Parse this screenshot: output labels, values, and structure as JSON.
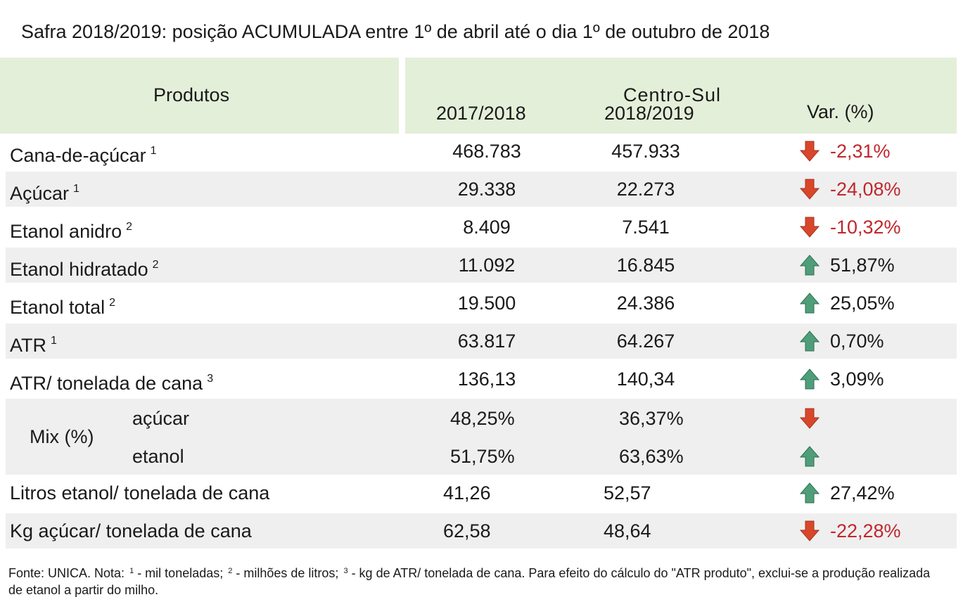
{
  "title": "Safra 2018/2019: posição ACUMULADA entre 1º de abril até o dia 1º de outubro de 2018",
  "header": {
    "produtos": "Produtos",
    "region": "Centro-Sul",
    "col1": "2017/2018",
    "col2": "2018/2019",
    "var": "Var. (%)"
  },
  "rows": [
    {
      "label": "Cana-de-açúcar",
      "note": "1",
      "v1": "468.783",
      "v2": "457.933",
      "trend": "down",
      "var": "-2,31%"
    },
    {
      "label": "Açúcar",
      "note": "1",
      "v1": "29.338",
      "v2": "22.273",
      "trend": "down",
      "var": "-24,08%"
    },
    {
      "label": "Etanol anidro",
      "note": "2",
      "v1": "8.409",
      "v2": "7.541",
      "trend": "down",
      "var": "-10,32%"
    },
    {
      "label": "Etanol hidratado",
      "note": "2",
      "v1": "11.092",
      "v2": "16.845",
      "trend": "up",
      "var": "51,87%"
    },
    {
      "label": "Etanol total",
      "note": "2",
      "v1": "19.500",
      "v2": "24.386",
      "trend": "up",
      "var": "25,05%"
    },
    {
      "label": "ATR",
      "note": "1",
      "v1": "63.817",
      "v2": "64.267",
      "trend": "up",
      "var": "0,70%"
    },
    {
      "label": "ATR/ tonelada de cana",
      "note": "3",
      "v1": "136,13",
      "v2": "140,34",
      "trend": "up",
      "var": "3,09%"
    }
  ],
  "mix": {
    "label": "Mix (%)",
    "sub": [
      {
        "label": "açúcar",
        "v1": "48,25%",
        "v2": "36,37%",
        "trend": "down"
      },
      {
        "label": "etanol",
        "v1": "51,75%",
        "v2": "63,63%",
        "trend": "up"
      }
    ]
  },
  "rows2": [
    {
      "label": "Litros etanol/ tonelada de cana",
      "v1": "41,26",
      "v2": "52,57",
      "trend": "up",
      "var": "27,42%"
    },
    {
      "label": "Kg açúcar/ tonelada de cana",
      "v1": "62,58",
      "v2": "48,64",
      "trend": "down",
      "var": "-22,28%"
    }
  ],
  "footnote": {
    "a": "Fonte: UNICA. Nota: ",
    "n1": "1",
    "b": " - mil toneladas; ",
    "n2": "2",
    "c": " - milhões de litros; ",
    "n3": "3",
    "d": " - kg de ATR/ tonelada de cana. Para efeito do cálculo do \"ATR produto\", exclui-se a produção realizada de etanol a partir do milho."
  },
  "colors": {
    "header_bg": "#e4efd9",
    "row_shade": "#efefef",
    "down": "#d9472b",
    "up": "#4f9e7a",
    "neg_text": "#c0272d"
  }
}
